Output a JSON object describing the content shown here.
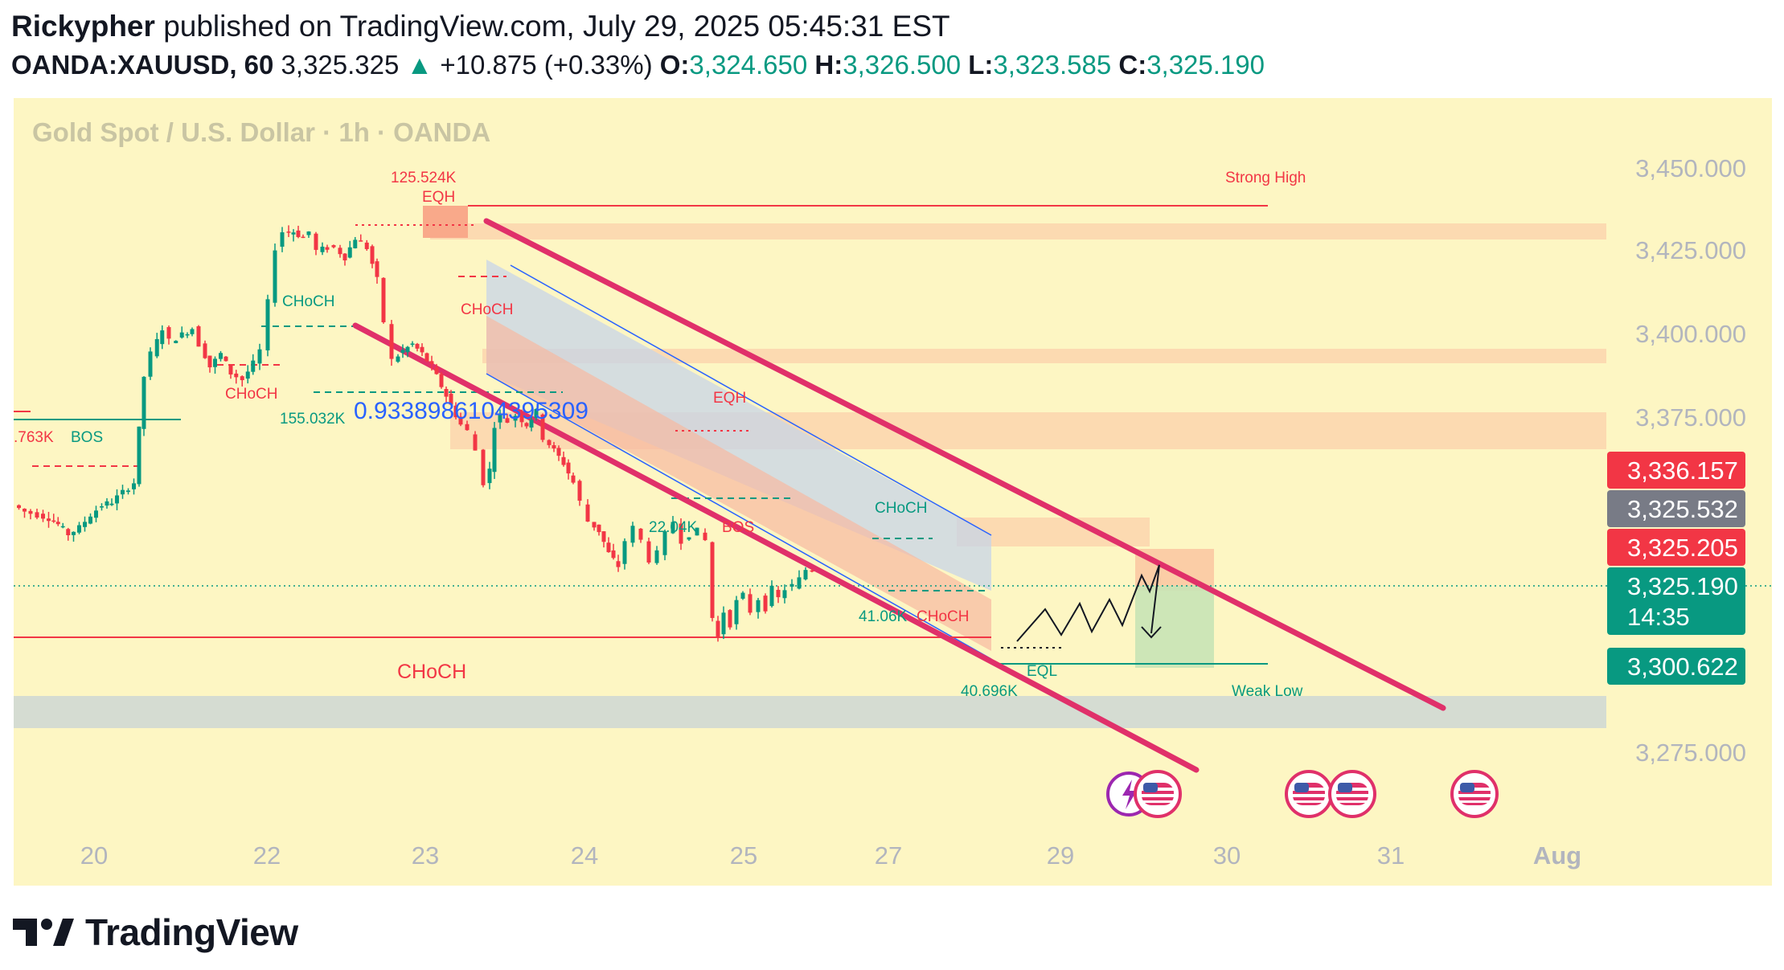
{
  "header": {
    "author": "Rickypher",
    "published": "published on TradingView.com, July 29, 2025 05:45:31 EST",
    "symbol": "OANDA:XAUUSD, 60",
    "price": "3,325.325",
    "arrow": "▲",
    "change": "+10.875 (+0.33%)",
    "o_label": "O:",
    "o_value": "3,324.650",
    "h_label": "H:",
    "h_value": "3,326.500",
    "l_label": "L:",
    "l_value": "3,323.585",
    "c_label": "C:",
    "c_value": "3,325.190"
  },
  "footer": {
    "brand": "TradingView",
    "logo_icon": "tradingview-logo-icon"
  },
  "colors": {
    "background": "#fdf6c3",
    "bull": "#089981",
    "bear": "#f23645",
    "channel": "#e0306a",
    "zone": "#fbd3ad",
    "gray_zone": "#d5dcd2",
    "blue_channel": "#c7d4e8",
    "red_box": "#f9b49c"
  },
  "chart_data": {
    "type": "candlestick",
    "title": "Gold Spot / U.S. Dollar · 1h · OANDA",
    "y_ticks": [
      "3,450.000",
      "3,425.000",
      "3,400.000",
      "3,375.000",
      "3,275.000"
    ],
    "ylim": [
      3262,
      3465
    ],
    "x_ticks": [
      "20",
      "22",
      "23",
      "24",
      "25",
      "27",
      "29",
      "30",
      "31",
      "Aug"
    ],
    "price_badges": [
      {
        "text": "3,336.157",
        "color": "#f23645"
      },
      {
        "text": "3,325.532",
        "color": "#787b86"
      },
      {
        "text": "3,325.205",
        "color": "#f23645"
      },
      {
        "text": "3,325.190",
        "sub": "14:35",
        "color": "#089981"
      },
      {
        "text": "3,300.622",
        "color": "#089981"
      }
    ],
    "path": [
      [
        0,
        3345
      ],
      [
        14,
        3343
      ],
      [
        30,
        3342
      ],
      [
        44,
        3341
      ],
      [
        55,
        3339
      ],
      [
        68,
        3336
      ],
      [
        82,
        3338
      ],
      [
        96,
        3342
      ],
      [
        110,
        3345
      ],
      [
        122,
        3346
      ],
      [
        136,
        3349
      ],
      [
        150,
        3352
      ],
      [
        162,
        3385
      ],
      [
        172,
        3392
      ],
      [
        185,
        3400
      ],
      [
        195,
        3396
      ],
      [
        210,
        3398
      ],
      [
        222,
        3400
      ],
      [
        232,
        3395
      ],
      [
        244,
        3388
      ],
      [
        258,
        3392
      ],
      [
        270,
        3386
      ],
      [
        285,
        3384
      ],
      [
        298,
        3389
      ],
      [
        308,
        3393
      ],
      [
        318,
        3408
      ],
      [
        326,
        3425
      ],
      [
        336,
        3430
      ],
      [
        348,
        3430
      ],
      [
        360,
        3428
      ],
      [
        368,
        3430
      ],
      [
        378,
        3424
      ],
      [
        390,
        3425
      ],
      [
        400,
        3425
      ],
      [
        412,
        3422
      ],
      [
        425,
        3428
      ],
      [
        440,
        3425
      ],
      [
        452,
        3415
      ],
      [
        462,
        3402
      ],
      [
        472,
        3390
      ],
      [
        484,
        3393
      ],
      [
        496,
        3395
      ],
      [
        508,
        3392
      ],
      [
        520,
        3388
      ],
      [
        532,
        3382
      ],
      [
        544,
        3376
      ],
      [
        556,
        3370
      ],
      [
        566,
        3368
      ],
      [
        576,
        3362
      ],
      [
        586,
        3352
      ],
      [
        592,
        3356
      ],
      [
        598,
        3370
      ],
      [
        606,
        3373
      ],
      [
        616,
        3371
      ],
      [
        626,
        3373
      ],
      [
        638,
        3370
      ],
      [
        650,
        3374
      ],
      [
        660,
        3366
      ],
      [
        672,
        3362
      ],
      [
        684,
        3358
      ],
      [
        696,
        3352
      ],
      [
        706,
        3346
      ],
      [
        716,
        3340
      ],
      [
        728,
        3337
      ],
      [
        740,
        3330
      ],
      [
        752,
        3326
      ],
      [
        762,
        3334
      ],
      [
        772,
        3338
      ],
      [
        782,
        3334
      ],
      [
        792,
        3328
      ],
      [
        802,
        3330
      ],
      [
        812,
        3336
      ],
      [
        822,
        3340
      ],
      [
        832,
        3334
      ],
      [
        842,
        3336
      ],
      [
        852,
        3337
      ],
      [
        862,
        3334
      ],
      [
        870,
        3310
      ],
      [
        876,
        3304
      ],
      [
        884,
        3312
      ],
      [
        892,
        3308
      ],
      [
        900,
        3315
      ],
      [
        908,
        3317
      ],
      [
        918,
        3312
      ],
      [
        928,
        3316
      ],
      [
        936,
        3313
      ],
      [
        944,
        3319
      ],
      [
        952,
        3316
      ],
      [
        960,
        3319
      ],
      [
        970,
        3320
      ],
      [
        978,
        3322
      ],
      [
        986,
        3325
      ],
      [
        994,
        3325
      ]
    ],
    "annotations": [
      "Strong High",
      "125.524K",
      "EQH",
      "CHoCH",
      "CHoCH",
      "CHoCH",
      "155.032K",
      "0.9338986104395309",
      ".763K",
      "BOS",
      "EQH",
      "22.04K",
      "BOS",
      "CHoCH",
      "41.06K",
      "CHoCH",
      "CHoCH",
      "40.696K",
      "EQL",
      "Weak Low"
    ]
  }
}
